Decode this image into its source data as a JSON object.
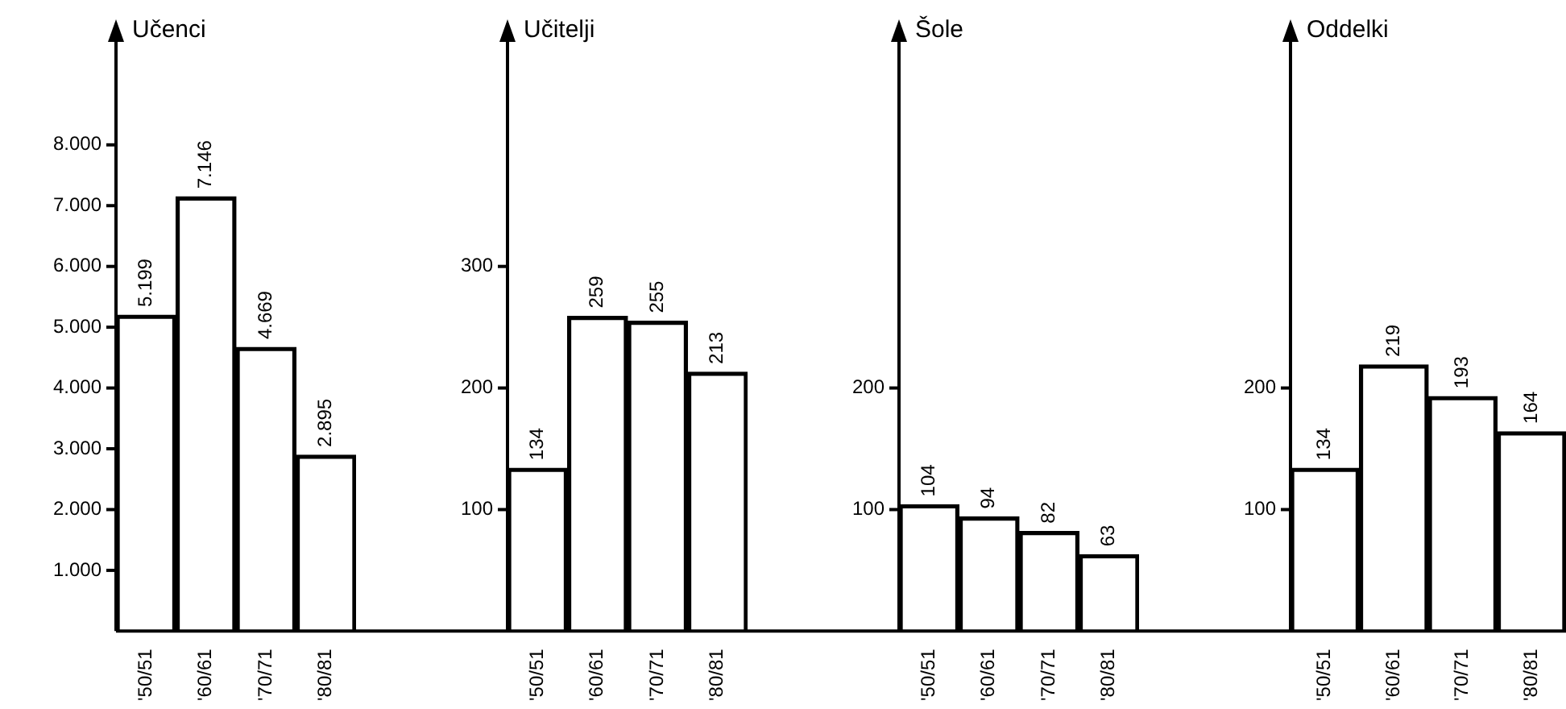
{
  "chart_data": [
    {
      "type": "bar",
      "title": "Učenci",
      "categories": [
        "'50/51",
        "'60/61",
        "'70/71",
        "'80/81"
      ],
      "values": [
        5199,
        7146,
        4669,
        2895
      ],
      "value_labels": [
        "5.199",
        "7.146",
        "4.669",
        "2.895"
      ],
      "color": "#000000",
      "ylim": [
        0,
        9800
      ],
      "yticks": [
        {
          "value": 1000,
          "label": "1.000"
        },
        {
          "value": 2000,
          "label": "2.000"
        },
        {
          "value": 3000,
          "label": "3.000"
        },
        {
          "value": 4000,
          "label": "4.000"
        },
        {
          "value": 5000,
          "label": "5.000"
        },
        {
          "value": 6000,
          "label": "6.000"
        },
        {
          "value": 7000,
          "label": "7.000"
        },
        {
          "value": 8000,
          "label": "8.000"
        }
      ]
    },
    {
      "type": "bar",
      "title": "Učitelji",
      "categories": [
        "'50/51",
        "'60/61",
        "'70/71",
        "'80/81"
      ],
      "values": [
        134,
        259,
        255,
        213
      ],
      "data_labels": true,
      "color": "#000000",
      "ylim": [
        0,
        490
      ],
      "yticks": [
        100,
        200,
        300
      ]
    },
    {
      "type": "bar",
      "title": "Šole",
      "categories": [
        "'50/51",
        "'60/61",
        "'70/71",
        "'80/81"
      ],
      "values": [
        104,
        94,
        82,
        63
      ],
      "data_labels": true,
      "color": "#000000",
      "ylim": [
        0,
        490
      ],
      "yticks": [
        100,
        200
      ]
    },
    {
      "type": "bar",
      "title": "Oddelki",
      "categories": [
        "'50/51",
        "'60/61",
        "'70/71",
        "'80/81"
      ],
      "values": [
        134,
        219,
        193,
        164
      ],
      "data_labels": true,
      "color": "#000000",
      "ylim": [
        0,
        490
      ],
      "yticks": [
        100,
        200
      ]
    }
  ]
}
